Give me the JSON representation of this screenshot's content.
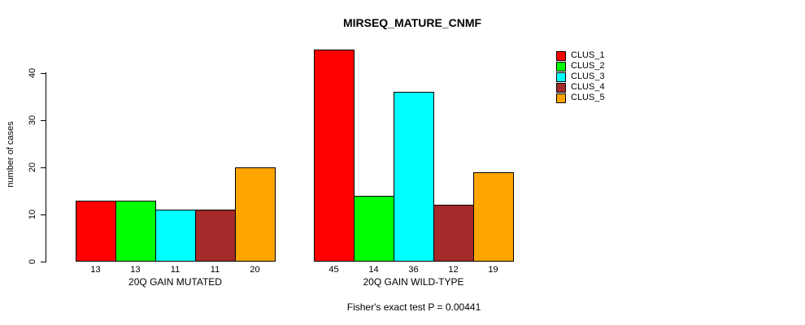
{
  "title": "MIRSEQ_MATURE_CNMF",
  "caption": "Fisher's exact test P = 0.00441",
  "y_axis": {
    "label": "number of cases",
    "ticks": [
      "0",
      "10",
      "20",
      "30",
      "40"
    ]
  },
  "legend": {
    "items": [
      {
        "label": "CLUS_1",
        "color": "#ff0000"
      },
      {
        "label": "CLUS_2",
        "color": "#00ff00"
      },
      {
        "label": "CLUS_3",
        "color": "#00ffff"
      },
      {
        "label": "CLUS_4",
        "color": "#a52a2a"
      },
      {
        "label": "CLUS_5",
        "color": "#ffa500"
      }
    ]
  },
  "chart_data": {
    "type": "bar",
    "title": "MIRSEQ_MATURE_CNMF",
    "xlabel": "",
    "ylabel": "number of cases",
    "ylim": [
      0,
      46
    ],
    "yticks": [
      0,
      10,
      20,
      30,
      40
    ],
    "grid": false,
    "legend_position": "top-right",
    "categories": [
      "20Q GAIN MUTATED",
      "20Q GAIN WILD-TYPE"
    ],
    "series": [
      {
        "name": "CLUS_1",
        "color": "#ff0000",
        "values": [
          13,
          45
        ]
      },
      {
        "name": "CLUS_2",
        "color": "#00ff00",
        "values": [
          13,
          14
        ]
      },
      {
        "name": "CLUS_3",
        "color": "#00ffff",
        "values": [
          11,
          36
        ]
      },
      {
        "name": "CLUS_4",
        "color": "#a52a2a",
        "values": [
          11,
          12
        ]
      },
      {
        "name": "CLUS_5",
        "color": "#ffa500",
        "values": [
          20,
          19
        ]
      }
    ],
    "bar_value_labels": [
      [
        13,
        13,
        11,
        11,
        20
      ],
      [
        45,
        14,
        36,
        12,
        19
      ]
    ],
    "annotation": "Fisher's exact test P = 0.00441"
  }
}
